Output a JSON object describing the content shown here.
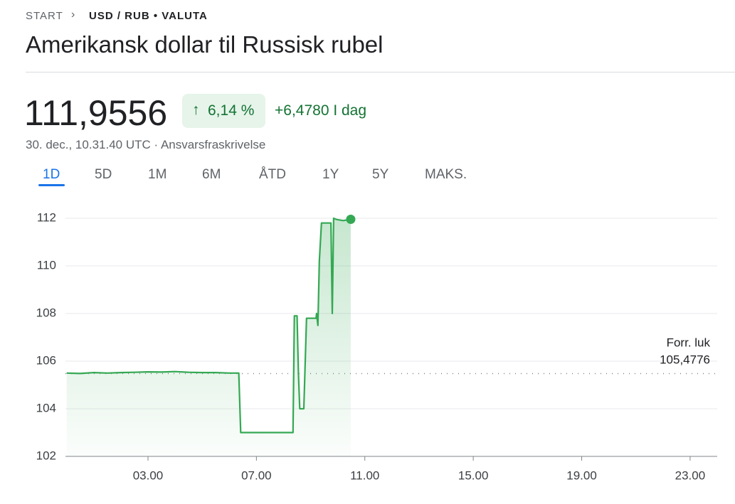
{
  "breadcrumb": [
    "START",
    "USD / RUB • VALUTA"
  ],
  "title": "Amerikansk dollar til Russisk rubel",
  "price": "111,9556",
  "change_percent": "6,14 %",
  "change_today": "+6,4780 I dag",
  "timestamp": "30. dec., 10.31.40 UTC · Ansvarsfraskrivelse",
  "tabs": [
    "1D",
    "5D",
    "1M",
    "6M",
    "ÅTD",
    "1Y",
    "5Y",
    "MAKS."
  ],
  "selected_tab": 0,
  "chart_data": {
    "type": "line",
    "color": "#34a853",
    "x": [
      0,
      0.5,
      1,
      1.5,
      2,
      2.5,
      3,
      3.5,
      4,
      4.5,
      5,
      5.5,
      6,
      6.35,
      6.42,
      8.35,
      8.4,
      8.5,
      8.55,
      8.6,
      8.75,
      8.85,
      9.2,
      9.22,
      9.27,
      9.32,
      9.4,
      9.75,
      9.8,
      9.85,
      9.95,
      10.2,
      10.48
    ],
    "values": [
      105.5,
      105.48,
      105.52,
      105.5,
      105.52,
      105.53,
      105.55,
      105.54,
      105.56,
      105.53,
      105.52,
      105.52,
      105.5,
      105.5,
      103.0,
      103.0,
      107.9,
      107.9,
      105.5,
      104.0,
      104.0,
      107.8,
      107.8,
      108.0,
      107.5,
      110.2,
      111.8,
      111.8,
      108.0,
      112.0,
      111.95,
      111.9,
      111.9556
    ],
    "xlim": [
      0,
      24
    ],
    "xticks": [
      {
        "value": 3,
        "label": "03.00"
      },
      {
        "value": 7,
        "label": "07.00"
      },
      {
        "value": 11,
        "label": "11.00"
      },
      {
        "value": 15,
        "label": "15.00"
      },
      {
        "value": 19,
        "label": "19.00"
      },
      {
        "value": 23,
        "label": "23.00"
      }
    ],
    "ylim": [
      102,
      112
    ],
    "yticks": [
      102,
      104,
      106,
      108,
      110,
      112
    ],
    "grid": true,
    "reference": {
      "label": "Forr. luk",
      "value": 105.4776,
      "value_label": "105,4776"
    }
  }
}
